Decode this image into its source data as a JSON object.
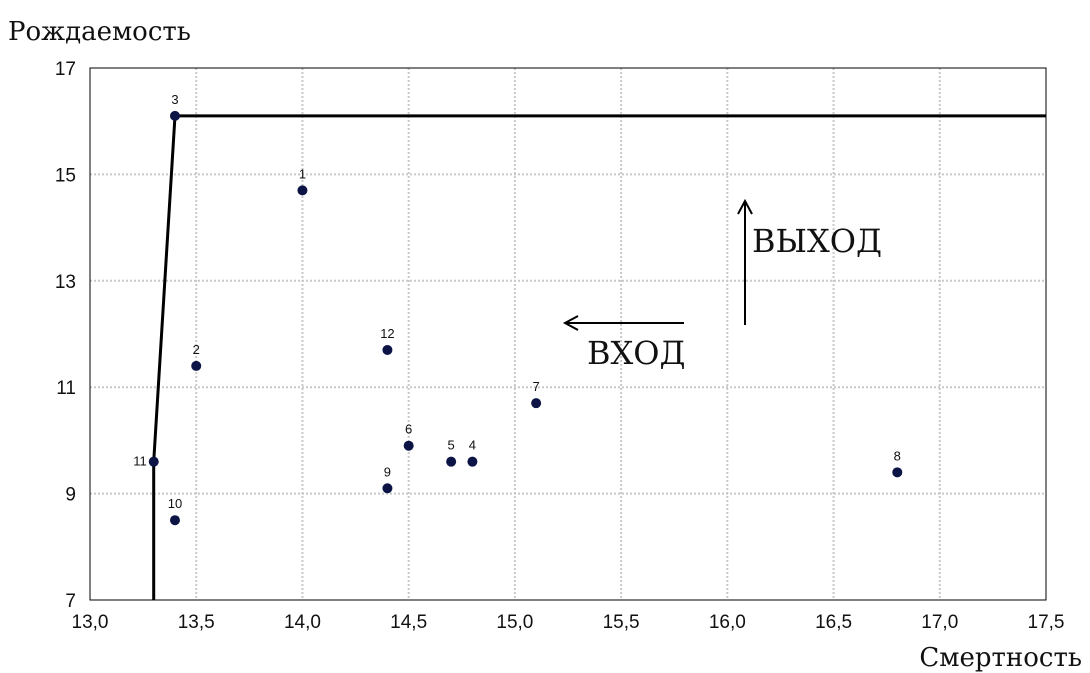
{
  "chart_data": {
    "type": "scatter",
    "title": "",
    "xlabel": "Смертность",
    "ylabel": "Рождаемость",
    "xlim": [
      13.0,
      17.5
    ],
    "ylim": [
      7,
      17
    ],
    "grid": true,
    "x_ticks": [
      "13,0",
      "13,5",
      "14,0",
      "14,5",
      "15,0",
      "15,5",
      "16,0",
      "16,5",
      "17,0",
      "17,5"
    ],
    "y_ticks": [
      "7",
      "9",
      "11",
      "13",
      "15",
      "17"
    ],
    "points": [
      {
        "label": "1",
        "x": 14.0,
        "y": 14.7
      },
      {
        "label": "2",
        "x": 13.5,
        "y": 11.4
      },
      {
        "label": "3",
        "x": 13.4,
        "y": 16.1
      },
      {
        "label": "4",
        "x": 14.8,
        "y": 9.6
      },
      {
        "label": "5",
        "x": 14.7,
        "y": 9.6
      },
      {
        "label": "6",
        "x": 14.5,
        "y": 9.9
      },
      {
        "label": "7",
        "x": 15.1,
        "y": 10.7
      },
      {
        "label": "8",
        "x": 16.8,
        "y": 9.4
      },
      {
        "label": "9",
        "x": 14.4,
        "y": 9.1
      },
      {
        "label": "10",
        "x": 13.4,
        "y": 8.5
      },
      {
        "label": "11",
        "x": 13.3,
        "y": 9.6
      },
      {
        "label": "12",
        "x": 14.4,
        "y": 11.7
      }
    ],
    "frontier": [
      {
        "x": 13.3,
        "y": 7.0
      },
      {
        "x": 13.3,
        "y": 9.6
      },
      {
        "x": 13.4,
        "y": 16.1
      },
      {
        "x": 17.5,
        "y": 16.1
      }
    ],
    "annotations": [
      {
        "text": "ВХОД",
        "arrow": "left"
      },
      {
        "text": "ВЫХОД",
        "arrow": "up"
      }
    ],
    "colors": {
      "point": "#0b1445",
      "grid": "#c8c8c8",
      "frontier": "#000000"
    }
  }
}
